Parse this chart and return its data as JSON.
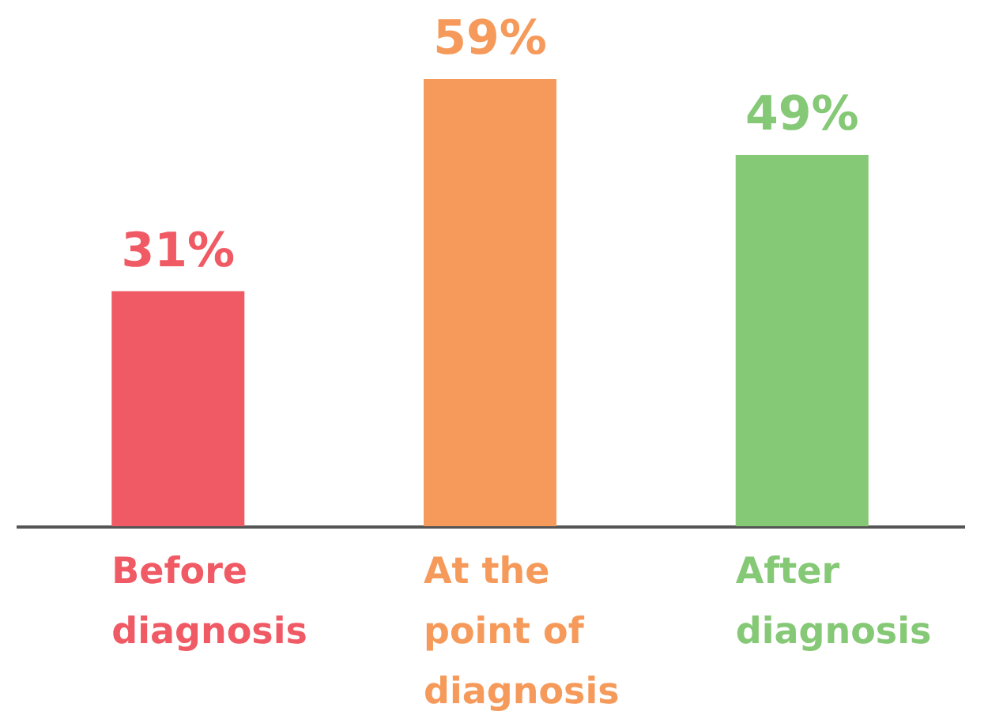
{
  "chart_data": {
    "type": "bar",
    "categories": [
      "Before diagnosis",
      "At the point of diagnosis",
      "After diagnosis"
    ],
    "values": [
      31,
      59,
      49
    ],
    "colors": [
      "#f05a64",
      "#f59a5a",
      "#85c875"
    ],
    "value_labels": [
      "31%",
      "59%",
      "49%"
    ],
    "grid": false
  }
}
